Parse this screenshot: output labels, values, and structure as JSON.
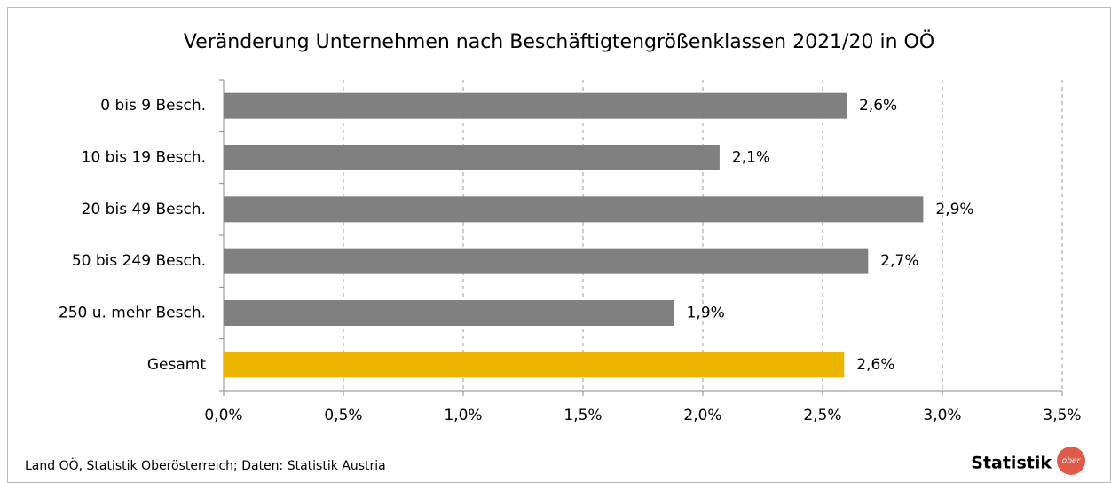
{
  "chart_data": {
    "type": "hbar",
    "title": "Veränderung Unternehmen nach Beschäftigtengrößenklassen 2021/20 in OÖ",
    "categories": [
      "0 bis 9 Besch.",
      "10 bis 19 Besch.",
      "20 bis 49 Besch.",
      "50 bis 249 Besch.",
      "250 u. mehr Besch.",
      "Gesamt"
    ],
    "values": [
      2.6,
      2.07,
      2.92,
      2.69,
      1.88,
      2.59
    ],
    "value_labels": [
      "2,6%",
      "2,1%",
      "2,9%",
      "2,7%",
      "1,9%",
      "2,6%"
    ],
    "colors": [
      "#808080",
      "#808080",
      "#808080",
      "#808080",
      "#808080",
      "#ebb400"
    ],
    "xlim": [
      0,
      3.5
    ],
    "xticks": [
      {
        "value": 0,
        "label": "0,0%"
      },
      {
        "value": 0.5,
        "label": "0,5%"
      },
      {
        "value": 1,
        "label": "1,0%"
      },
      {
        "value": 1.5,
        "label": "1,5%"
      },
      {
        "value": 2,
        "label": "2,0%"
      },
      {
        "value": 2.5,
        "label": "2,5%"
      },
      {
        "value": 3,
        "label": "3,0%"
      },
      {
        "value": 3.5,
        "label": "3,5%"
      }
    ],
    "grid": true
  },
  "footer": {
    "source": "Land OÖ, Statistik Oberösterreich; Daten: Statistik Austria",
    "logo": "Statistik",
    "logo_badge": "ober"
  }
}
